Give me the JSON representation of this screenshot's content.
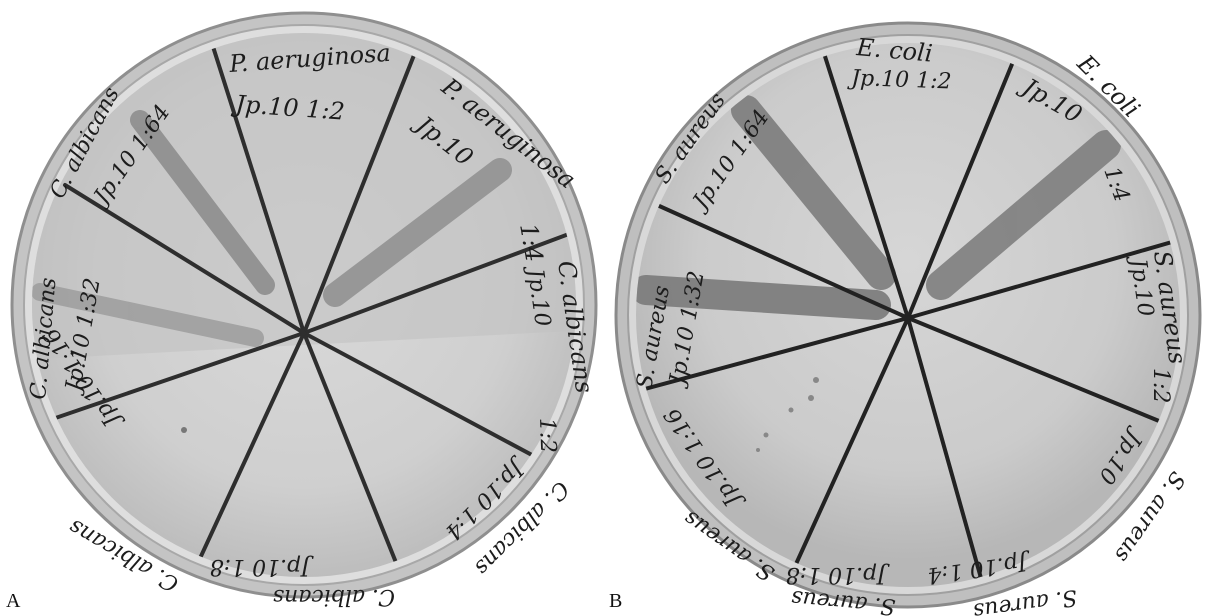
{
  "panels": [
    {
      "letter": "A",
      "labels": [
        {
          "id": "seg1-org",
          "text": "P. aeruginosa"
        },
        {
          "id": "seg1-conc",
          "text": "Jp.10      1:2"
        },
        {
          "id": "seg2-org",
          "text": "P. aeruginosa"
        },
        {
          "id": "seg2-code",
          "text": "Jp.10"
        },
        {
          "id": "seg2-dil",
          "text": "1:4"
        },
        {
          "id": "seg3-org",
          "text": "C. albicans"
        },
        {
          "id": "seg3-code",
          "text": "Jp.10"
        },
        {
          "id": "seg3-dil",
          "text": "1:2"
        },
        {
          "id": "seg4-org",
          "text": "C. albicans"
        },
        {
          "id": "seg4-conc",
          "text": "Jp.10 1:4"
        },
        {
          "id": "seg5-org",
          "text": "C. albicans"
        },
        {
          "id": "seg5-conc",
          "text": "Jp.10  1:8"
        },
        {
          "id": "seg6-org",
          "text": "C. albicans"
        },
        {
          "id": "seg6-conc",
          "text": "Jp.10  1:16"
        },
        {
          "id": "seg7-org",
          "text": "C. albicans"
        },
        {
          "id": "seg7-conc",
          "text": "Jp.10  1:32"
        },
        {
          "id": "seg8-org",
          "text": "C. albicans"
        },
        {
          "id": "seg8-conc",
          "text": "Jp.10 1:64"
        }
      ]
    },
    {
      "letter": "B",
      "labels": [
        {
          "id": "seg1-org",
          "text": "E. coli"
        },
        {
          "id": "seg1-conc",
          "text": "Jp.10    1:2"
        },
        {
          "id": "seg2-org",
          "text": "E. coli"
        },
        {
          "id": "seg2-code",
          "text": "Jp.10"
        },
        {
          "id": "seg2-dil",
          "text": "1:4"
        },
        {
          "id": "seg3-org",
          "text": "S. aureus"
        },
        {
          "id": "seg3-code",
          "text": "Jp.10"
        },
        {
          "id": "seg3-dil",
          "text": "1:2"
        },
        {
          "id": "seg4-org",
          "text": "S. aureus"
        },
        {
          "id": "seg4-conc",
          "text": "Jp.10"
        },
        {
          "id": "seg5-org",
          "text": "S. aureus"
        },
        {
          "id": "seg5-conc",
          "text": "Jp.10 1:4"
        },
        {
          "id": "seg6-org",
          "text": "S. aureus"
        },
        {
          "id": "seg6-conc",
          "text": "Jp.10 1:8"
        },
        {
          "id": "seg7-org",
          "text": "S. aureus"
        },
        {
          "id": "seg7-conc",
          "text": "Jp.10 1:16"
        },
        {
          "id": "seg8-org",
          "text": "S. aureus"
        },
        {
          "id": "seg8-conc",
          "text": "Jp.10 1:32"
        },
        {
          "id": "seg9-org",
          "text": "S. aureus"
        },
        {
          "id": "seg9-conc",
          "text": "Jp.10 1:64"
        }
      ]
    }
  ]
}
